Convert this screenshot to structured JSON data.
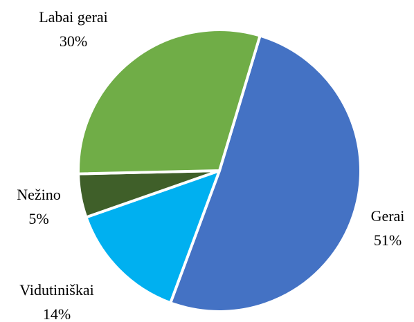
{
  "chart_data": {
    "type": "pie",
    "categories": [
      "Gerai",
      "Vidutiniškai",
      "Nežino",
      "Labai gerai"
    ],
    "values": [
      51,
      14,
      5,
      30
    ],
    "value_labels": [
      "51%",
      "14%",
      "5%",
      "30%"
    ],
    "colors": [
      "#4472c4",
      "#00b0f0",
      "#3f5f29",
      "#70ad47"
    ]
  }
}
